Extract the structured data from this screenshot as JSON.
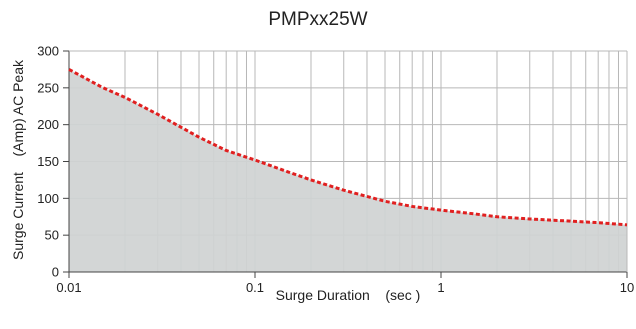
{
  "chart_data": {
    "type": "area",
    "title": "PMPxx25W",
    "xlabel": "Surge Duration    (sec )",
    "ylabel": "Surge Current    (Amp) AC Peak",
    "x_scale": "log",
    "xlim": [
      0.01,
      10
    ],
    "ylim": [
      0,
      300
    ],
    "x_ticks": [
      0.01,
      0.1,
      1,
      10
    ],
    "x_tick_labels": [
      "0.01",
      "0.1",
      "1",
      "10"
    ],
    "y_ticks": [
      0,
      50,
      100,
      150,
      200,
      250,
      300
    ],
    "y_tick_labels": [
      "0",
      "50",
      "100",
      "150",
      "200",
      "250",
      "300"
    ],
    "grid": true,
    "series": [
      {
        "x": [
          0.01,
          0.015,
          0.02,
          0.03,
          0.05,
          0.07,
          0.1,
          0.15,
          0.2,
          0.3,
          0.5,
          0.7,
          1,
          1.5,
          2,
          3,
          5,
          7,
          10
        ],
        "values": [
          275,
          251,
          237,
          214,
          183,
          165,
          152,
          136,
          125,
          111,
          96,
          89,
          84,
          79,
          75,
          72,
          69,
          67,
          64
        ]
      }
    ],
    "colors": {
      "line": "#e02020",
      "fill": "#cfd3d3",
      "grid": "#b8b8b8",
      "axis": "#444444"
    }
  }
}
